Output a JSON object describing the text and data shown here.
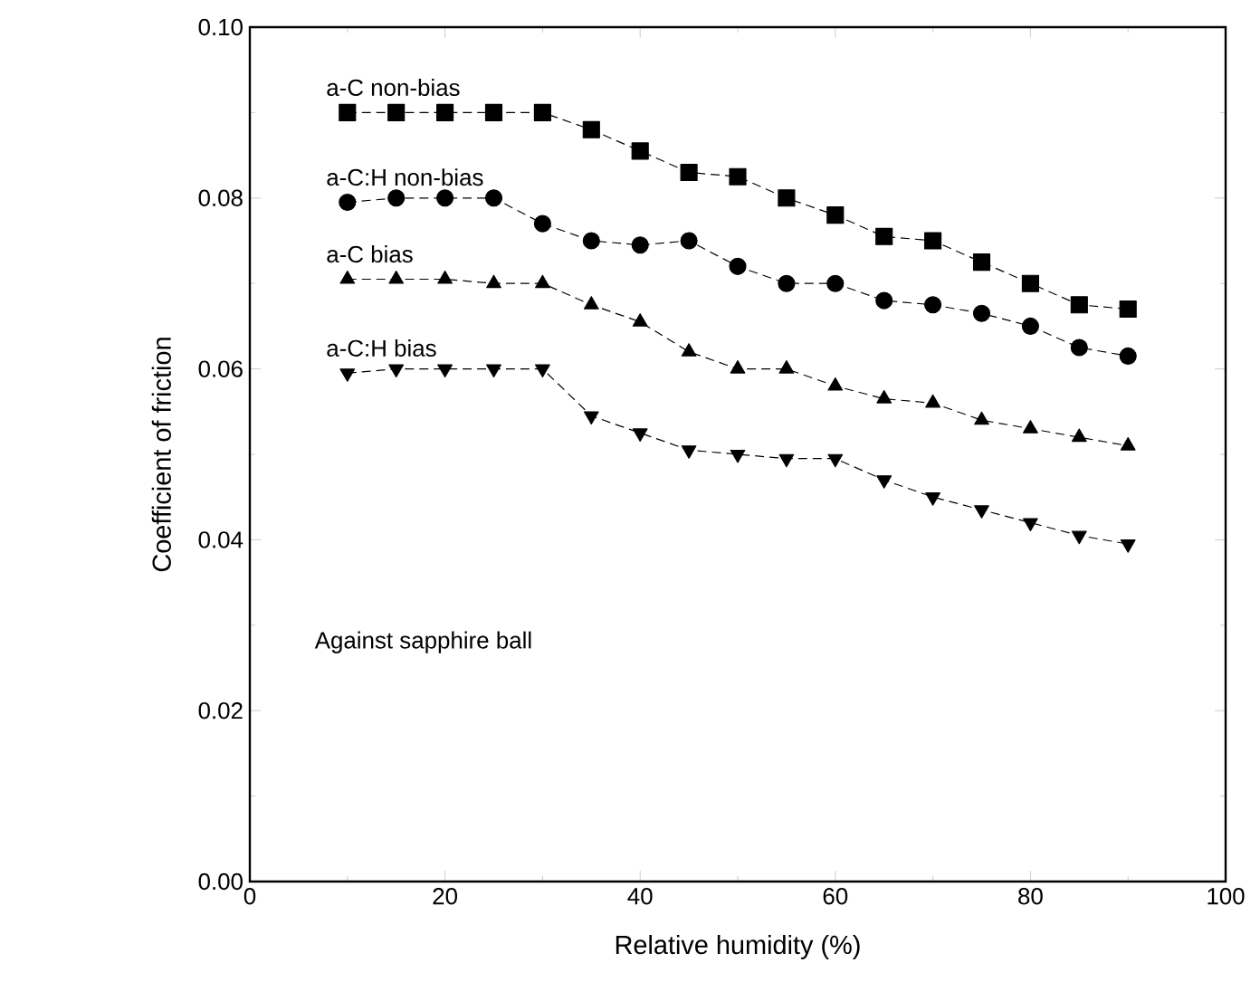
{
  "chart_data": {
    "type": "line",
    "xlabel": "Relative humidity (%)",
    "ylabel": "Coefficient of friction",
    "annotations": [
      "Against sapphire ball"
    ],
    "x": [
      10,
      15,
      20,
      25,
      30,
      35,
      40,
      45,
      50,
      55,
      60,
      65,
      70,
      75,
      80,
      85,
      90
    ],
    "series": [
      {
        "name": "a-C non-bias",
        "color": "#000000",
        "marker": "square",
        "values": [
          0.09,
          0.09,
          0.09,
          0.09,
          0.09,
          0.088,
          0.0855,
          0.083,
          0.0825,
          0.08,
          0.078,
          0.0755,
          0.075,
          0.0725,
          0.07,
          0.0675,
          0.067
        ]
      },
      {
        "name": "a-C:H non-bias",
        "color": "#000000",
        "marker": "circle",
        "values": [
          0.0795,
          0.08,
          0.08,
          0.08,
          0.077,
          0.075,
          0.0745,
          0.075,
          0.072,
          0.07,
          0.07,
          0.068,
          0.0675,
          0.0665,
          0.065,
          0.0625,
          0.0615
        ]
      },
      {
        "name": "a-C bias",
        "color": "#000000",
        "marker": "triangle",
        "values": [
          0.0705,
          0.0705,
          0.0705,
          0.07,
          0.07,
          0.0675,
          0.0655,
          0.062,
          0.06,
          0.06,
          0.058,
          0.0565,
          0.056,
          0.054,
          0.053,
          0.052,
          0.051
        ]
      },
      {
        "name": "a-C:H bias",
        "color": "#000000",
        "marker": "triangle down",
        "values": [
          0.0595,
          0.06,
          0.06,
          0.06,
          0.06,
          0.0545,
          0.0525,
          0.0505,
          0.05,
          0.0495,
          0.0495,
          0.047,
          0.045,
          0.0435,
          0.042,
          0.0405,
          0.0395
        ]
      }
    ],
    "xlim": [
      0,
      100
    ],
    "xticks": [
      0,
      20,
      40,
      60,
      80,
      100
    ],
    "ylim": [
      0,
      0.1
    ],
    "yticks": [
      {
        "value": 0,
        "label": "0.00"
      },
      {
        "value": 0.02,
        "label": "0.02"
      },
      {
        "value": 0.04,
        "label": "0.04"
      },
      {
        "value": 0.06,
        "label": "0.06"
      },
      {
        "value": 0.08,
        "label": "0.08"
      },
      {
        "value": 0.1,
        "label": "0.10"
      }
    ],
    "line_style": "dashed",
    "legend": false,
    "grid": false
  }
}
